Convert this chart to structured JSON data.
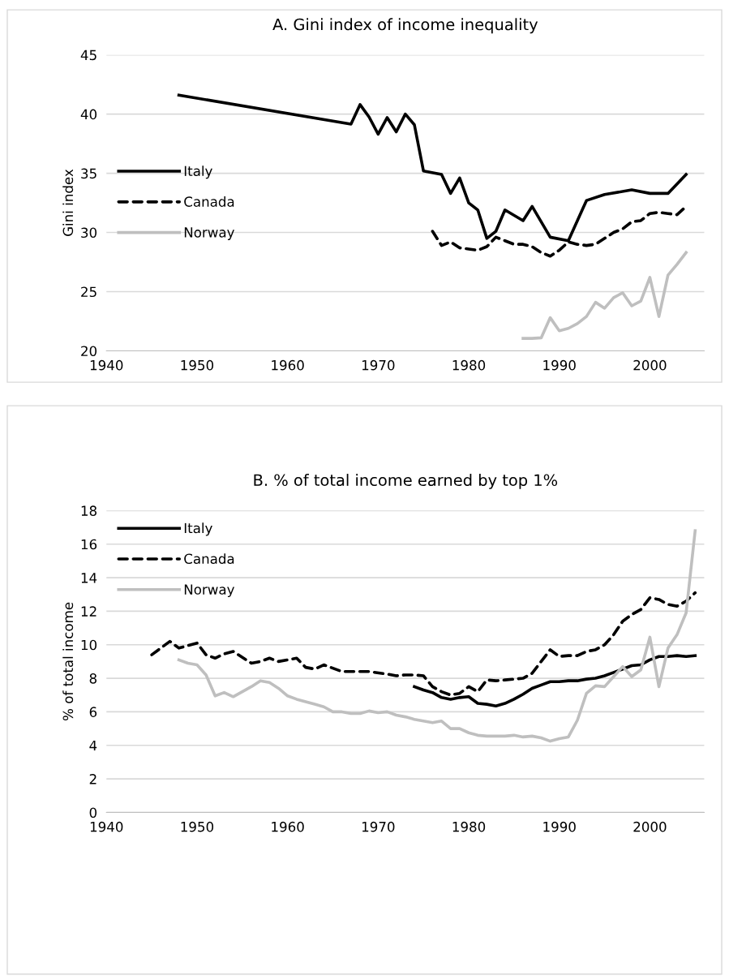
{
  "chart_data": [
    {
      "type": "line",
      "title": "A. Gini index of income inequality",
      "ylabel": "Gini index",
      "xlim": [
        1940,
        2006
      ],
      "xticks": [
        1940,
        1950,
        1960,
        1970,
        1980,
        1990,
        2000
      ],
      "ylim": [
        20,
        45
      ],
      "yticks": [
        20,
        25,
        30,
        35,
        40,
        45
      ],
      "grid": "y",
      "legend": "center left",
      "marker": "none",
      "series": [
        {
          "name": "Italy",
          "color": "#000000",
          "line_style": "solid",
          "x": [
            1948,
            1967,
            1968,
            1969,
            1970,
            1971,
            1972,
            1973,
            1974,
            1975,
            1977,
            1978,
            1979,
            1980,
            1981,
            1982,
            1983,
            1984,
            1986,
            1987,
            1989,
            1991,
            1993,
            1995,
            1998,
            2000,
            2002,
            2004
          ],
          "values": [
            41.6,
            39.15,
            40.8,
            39.75,
            38.3,
            39.7,
            38.5,
            40.0,
            39.1,
            35.2,
            34.9,
            33.3,
            34.6,
            32.5,
            31.9,
            29.5,
            30.1,
            31.9,
            31.0,
            32.2,
            29.6,
            29.3,
            32.7,
            33.2,
            33.6,
            33.3,
            33.3,
            34.9
          ]
        },
        {
          "name": "Canada",
          "color": "#000000",
          "line_style": "dashed",
          "x": [
            1976,
            1977,
            1978,
            1979,
            1980,
            1981,
            1982,
            1983,
            1984,
            1985,
            1986,
            1987,
            1988,
            1989,
            1990,
            1991,
            1992,
            1993,
            1994,
            1995,
            1996,
            1997,
            1998,
            1999,
            2000,
            2001,
            2002,
            2003,
            2004
          ],
          "values": [
            30.1,
            28.9,
            29.2,
            28.7,
            28.6,
            28.5,
            28.8,
            29.6,
            29.3,
            29.0,
            29.0,
            28.8,
            28.3,
            28.0,
            28.5,
            29.2,
            29.0,
            28.9,
            29.0,
            29.5,
            30.0,
            30.3,
            30.9,
            31.0,
            31.6,
            31.7,
            31.6,
            31.5,
            32.2
          ]
        },
        {
          "name": "Norway",
          "color": "#bfbfbf",
          "line_style": "solid",
          "x": [
            1986,
            1987,
            1988,
            1989,
            1990,
            1991,
            1992,
            1993,
            1994,
            1995,
            1996,
            1997,
            1998,
            1999,
            2000,
            2001,
            2002,
            2003,
            2004
          ],
          "values": [
            21.05,
            21.05,
            21.1,
            22.8,
            21.7,
            21.9,
            22.3,
            22.9,
            24.1,
            23.6,
            24.5,
            24.9,
            23.8,
            24.2,
            26.2,
            22.9,
            26.4,
            27.3,
            28.3
          ]
        }
      ]
    },
    {
      "type": "line",
      "title": "B. % of total income earned by top 1%",
      "ylabel": "% of total income",
      "xlim": [
        1940,
        2006
      ],
      "xticks": [
        1940,
        1950,
        1960,
        1970,
        1980,
        1990,
        2000
      ],
      "ylim": [
        0,
        18
      ],
      "yticks": [
        0,
        2,
        4,
        6,
        8,
        10,
        12,
        14,
        16,
        18
      ],
      "grid": "y",
      "legend": "upper left",
      "marker": "none",
      "series": [
        {
          "name": "Italy",
          "color": "#000000",
          "line_style": "solid",
          "x": [
            1974,
            1975,
            1976,
            1977,
            1978,
            1979,
            1980,
            1981,
            1982,
            1983,
            1984,
            1985,
            1986,
            1987,
            1988,
            1989,
            1990,
            1991,
            1992,
            1993,
            1994,
            1995,
            1996,
            1997,
            1998,
            1999,
            2000,
            2001,
            2002,
            2003,
            2004,
            2005
          ],
          "values": [
            7.5,
            7.3,
            7.15,
            6.85,
            6.75,
            6.85,
            6.9,
            6.5,
            6.45,
            6.35,
            6.5,
            6.75,
            7.05,
            7.4,
            7.6,
            7.8,
            7.8,
            7.85,
            7.85,
            7.95,
            8.0,
            8.15,
            8.35,
            8.55,
            8.75,
            8.8,
            9.1,
            9.3,
            9.3,
            9.35,
            9.3,
            9.35
          ]
        },
        {
          "name": "Canada",
          "color": "#000000",
          "line_style": "dashed",
          "x": [
            1945,
            1947,
            1948,
            1950,
            1951,
            1952,
            1953,
            1954,
            1956,
            1957,
            1958,
            1959,
            1960,
            1961,
            1962,
            1963,
            1964,
            1966,
            1967,
            1968,
            1969,
            1971,
            1972,
            1973,
            1974,
            1975,
            1976,
            1977,
            1978,
            1979,
            1980,
            1981,
            1982,
            1983,
            1984,
            1985,
            1986,
            1987,
            1988,
            1989,
            1990,
            1991,
            1992,
            1993,
            1994,
            1995,
            1996,
            1997,
            1998,
            1999,
            2000,
            2001,
            2002,
            2003,
            2004,
            2005
          ],
          "values": [
            9.4,
            10.2,
            9.8,
            10.1,
            9.4,
            9.2,
            9.45,
            9.6,
            8.9,
            9.0,
            9.2,
            9.0,
            9.1,
            9.2,
            8.65,
            8.55,
            8.8,
            8.4,
            8.4,
            8.4,
            8.4,
            8.25,
            8.15,
            8.2,
            8.2,
            8.15,
            7.5,
            7.2,
            7.0,
            7.1,
            7.5,
            7.2,
            7.9,
            7.85,
            7.9,
            7.95,
            8.0,
            8.3,
            9.0,
            9.7,
            9.3,
            9.35,
            9.35,
            9.6,
            9.7,
            10.0,
            10.6,
            11.4,
            11.8,
            12.1,
            12.8,
            12.7,
            12.4,
            12.3,
            12.6,
            13.1
          ]
        },
        {
          "name": "Norway",
          "color": "#bfbfbf",
          "line_style": "solid",
          "x": [
            1948,
            1949,
            1950,
            1951,
            1952,
            1953,
            1954,
            1955,
            1956,
            1957,
            1958,
            1959,
            1960,
            1961,
            1962,
            1963,
            1964,
            1965,
            1966,
            1967,
            1968,
            1969,
            1970,
            1971,
            1972,
            1973,
            1974,
            1975,
            1976,
            1977,
            1978,
            1979,
            1980,
            1981,
            1982,
            1983,
            1984,
            1985,
            1986,
            1987,
            1988,
            1989,
            1990,
            1991,
            1992,
            1993,
            1994,
            1995,
            1996,
            1997,
            1998,
            1999,
            2000,
            2001,
            2002,
            2003,
            2004,
            2005
          ],
          "values": [
            9.1,
            8.9,
            8.8,
            8.2,
            6.95,
            7.15,
            6.9,
            7.2,
            7.5,
            7.85,
            7.75,
            7.4,
            6.95,
            6.75,
            6.6,
            6.45,
            6.3,
            6.0,
            6.0,
            5.9,
            5.9,
            6.05,
            5.95,
            6.0,
            5.8,
            5.7,
            5.55,
            5.45,
            5.35,
            5.45,
            5.0,
            5.0,
            4.75,
            4.6,
            4.55,
            4.55,
            4.55,
            4.6,
            4.5,
            4.55,
            4.45,
            4.25,
            4.4,
            4.5,
            5.5,
            7.1,
            7.55,
            7.5,
            8.1,
            8.7,
            8.1,
            8.5,
            10.45,
            7.5,
            9.8,
            10.6,
            11.9,
            16.8
          ]
        }
      ]
    }
  ]
}
